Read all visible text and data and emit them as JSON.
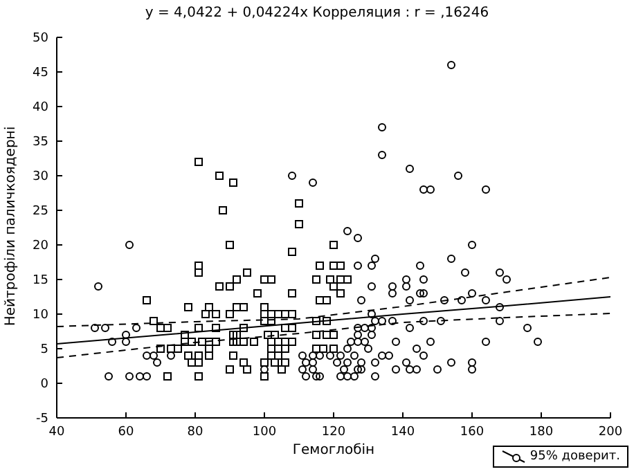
{
  "chart_data": {
    "type": "scatter",
    "title": "y = 4,0422 + 0,04224x  Корреляция : r = ,16246",
    "xlabel": "Гемоглобін",
    "ylabel": "Нейтрофіли паличкоядерні",
    "xlim": [
      40,
      200
    ],
    "xticks": [
      40,
      60,
      80,
      100,
      120,
      140,
      160,
      180,
      200
    ],
    "ylim": [
      -5,
      50
    ],
    "yticks": [
      -5,
      0,
      5,
      10,
      15,
      20,
      25,
      30,
      35,
      40,
      45,
      50
    ],
    "grid": false,
    "legend": "bottom right",
    "series": [
      {
        "marker": "square",
        "color": "#000000",
        "x": [
          81,
          87,
          91,
          88,
          90,
          110,
          110,
          120,
          108,
          81,
          81,
          95,
          92,
          100,
          102,
          116,
          87,
          90,
          66,
          98,
          108,
          78,
          84,
          92,
          94,
          100,
          83,
          86,
          90,
          100,
          102,
          104,
          106,
          108,
          68,
          100,
          102,
          70,
          72,
          81,
          86,
          94,
          106,
          108,
          101,
          103,
          77,
          91,
          92,
          77,
          79,
          82,
          84,
          86,
          91,
          92,
          94,
          97,
          102,
          104,
          106,
          108,
          70,
          73,
          75,
          84,
          102,
          106,
          78,
          81,
          84,
          91,
          102,
          104,
          79,
          81,
          94,
          100,
          103,
          106,
          90,
          95,
          105,
          72,
          81,
          100,
          120,
          122,
          115,
          119,
          122,
          124,
          120,
          122,
          116,
          118,
          115,
          118,
          115,
          118,
          120,
          115,
          117,
          120
        ],
        "values": [
          32,
          30,
          29,
          25,
          20,
          26,
          23,
          20,
          19,
          17,
          16,
          16,
          15,
          15,
          15,
          17,
          14,
          14,
          12,
          13,
          13,
          11,
          11,
          11,
          11,
          11,
          10,
          10,
          10,
          10,
          10,
          10,
          10,
          10,
          9,
          9,
          9,
          8,
          8,
          8,
          8,
          8,
          8,
          8,
          7,
          7,
          7,
          7,
          7,
          6,
          6,
          6,
          6,
          6,
          6,
          6,
          6,
          6,
          6,
          6,
          6,
          6,
          5,
          5,
          5,
          5,
          5,
          5,
          4,
          4,
          4,
          4,
          4,
          4,
          3,
          3,
          3,
          3,
          3,
          3,
          2,
          2,
          2,
          1,
          1,
          1,
          17,
          17,
          15,
          15,
          15,
          15,
          14,
          13,
          12,
          12,
          9,
          9,
          7,
          7,
          7,
          5,
          5,
          5
        ]
      },
      {
        "marker": "circle",
        "color": "#000000",
        "x": [
          61,
          108,
          114,
          154,
          134,
          134,
          142,
          146,
          148,
          156,
          164,
          124,
          127,
          160,
          52,
          154,
          132,
          127,
          131,
          145,
          158,
          168,
          170,
          141,
          146,
          131,
          137,
          141,
          137,
          145,
          146,
          160,
          128,
          142,
          152,
          157,
          164,
          168,
          131,
          60,
          56,
          60,
          51,
          54,
          63,
          132,
          134,
          137,
          146,
          151,
          168,
          176,
          142,
          129,
          131,
          127,
          127,
          131,
          164,
          179,
          138,
          148,
          125,
          127,
          129,
          124,
          130,
          144,
          66,
          68,
          73,
          111,
          114,
          116,
          119,
          122,
          126,
          134,
          136,
          146,
          69,
          112,
          114,
          121,
          124,
          128,
          132,
          141,
          154,
          160,
          160,
          100,
          111,
          114,
          123,
          127,
          128,
          138,
          142,
          144,
          150,
          55,
          61,
          64,
          66,
          112,
          115,
          116,
          122,
          124,
          126,
          132
        ],
        "values": [
          20,
          30,
          29,
          46,
          37,
          33,
          31,
          28,
          28,
          30,
          28,
          22,
          21,
          20,
          14,
          18,
          18,
          17,
          17,
          17,
          16,
          16,
          15,
          15,
          15,
          14,
          14,
          14,
          13,
          13,
          13,
          13,
          12,
          12,
          12,
          12,
          12,
          11,
          10,
          7,
          6,
          6,
          8,
          8,
          8,
          9,
          9,
          9,
          9,
          9,
          9,
          8,
          8,
          8,
          8,
          8,
          7,
          7,
          6,
          6,
          6,
          6,
          6,
          6,
          6,
          5,
          5,
          5,
          4,
          4,
          4,
          4,
          4,
          4,
          4,
          4,
          4,
          4,
          4,
          4,
          3,
          3,
          3,
          3,
          3,
          3,
          3,
          3,
          3,
          3,
          2,
          2,
          2,
          2,
          2,
          2,
          2,
          2,
          2,
          2,
          2,
          1,
          1,
          1,
          1,
          1,
          1,
          1,
          1,
          1,
          1,
          1
        ]
      },
      {
        "type": "line",
        "name": "95% доверит.",
        "marker": "none",
        "line_style": "solid",
        "color": "#000000",
        "x": [
          40,
          80,
          110,
          140,
          170,
          200
        ],
        "values": [
          5.7,
          7.4,
          8.7,
          10.0,
          11.2,
          12.5
        ]
      },
      {
        "type": "line",
        "marker": "none",
        "line_style": "dashed",
        "color": "#000000",
        "x": [
          40,
          80,
          110,
          140,
          170,
          200
        ],
        "values": [
          3.7,
          5.9,
          7.2,
          8.8,
          9.5,
          10.1
        ]
      },
      {
        "type": "line",
        "marker": "none",
        "line_style": "dashed",
        "color": "#000000",
        "x": [
          40,
          80,
          110,
          140,
          170,
          200
        ],
        "values": [
          8.2,
          8.9,
          9.3,
          11.1,
          13.2,
          15.3
        ]
      }
    ]
  }
}
